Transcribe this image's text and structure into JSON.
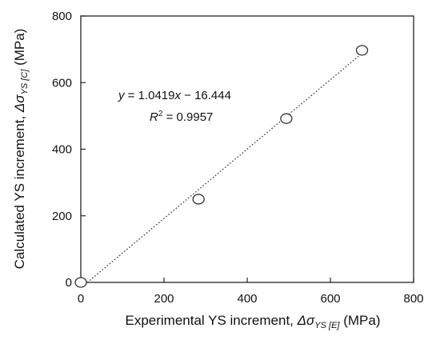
{
  "chart_data": {
    "type": "scatter",
    "xlabel": {
      "main": "Experimental YS increment, ",
      "symbol": "Δσ",
      "subscript": "YS [E]",
      "unit": " (MPa)"
    },
    "ylabel": {
      "main": "Calculated YS increment, ",
      "symbol": "Δσ",
      "subscript": "YS [C]",
      "unit": " (MPa)"
    },
    "xlim": [
      0,
      800
    ],
    "ylim": [
      0,
      800
    ],
    "xticks": [
      0,
      200,
      400,
      600,
      800
    ],
    "yticks": [
      0,
      200,
      400,
      600,
      800
    ],
    "points": [
      {
        "x": 0,
        "y": 0
      },
      {
        "x": 283,
        "y": 250
      },
      {
        "x": 494,
        "y": 492
      },
      {
        "x": 676,
        "y": 697
      }
    ],
    "trendline": {
      "slope": 1.0419,
      "intercept": -16.444,
      "x_range": [
        0,
        676
      ],
      "equation": {
        "y": "y",
        "eq_part": " = 1.0419",
        "x": "x",
        "rest": " − 16.444"
      },
      "r_squared": {
        "r": "R",
        "sup": "2",
        "rest": " = 0.9957"
      }
    },
    "grid": false,
    "legend": "none"
  }
}
